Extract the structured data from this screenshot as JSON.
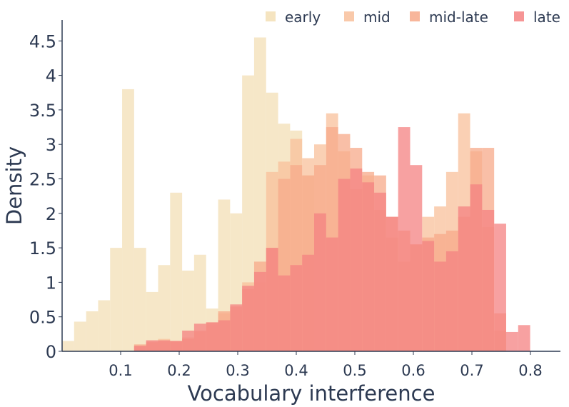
{
  "chart_data": {
    "type": "histogram",
    "title": "",
    "xlabel": "Vocabulary interference",
    "ylabel": "Density",
    "xlim": [
      0.0,
      0.84
    ],
    "ylim": [
      0,
      4.8
    ],
    "x_ticks": [
      0.1,
      0.2,
      0.3,
      0.4,
      0.5,
      0.6,
      0.7,
      0.8
    ],
    "x_tick_labels": [
      "0.1",
      "0.2",
      "0.3",
      "0.4",
      "0.5",
      "0.6",
      "0.7",
      "0.8"
    ],
    "y_ticks": [
      0,
      0.5,
      1,
      1.5,
      2,
      2.5,
      3,
      3.5,
      4,
      4.5
    ],
    "y_tick_labels": [
      "0",
      "0.5",
      "1",
      "1.5",
      "2",
      "2.5",
      "3",
      "3.5",
      "4",
      "4.5"
    ],
    "bin_width": 0.0205,
    "grid": false,
    "legend_position": "top",
    "series": [
      {
        "name": "early",
        "color": "#f3dfb5",
        "bin_starts": [
          0.0,
          0.0205,
          0.041,
          0.0615,
          0.082,
          0.1025,
          0.123,
          0.1435,
          0.164,
          0.1845,
          0.205,
          0.2255,
          0.246,
          0.2665,
          0.287,
          0.3075,
          0.328,
          0.3485,
          0.369,
          0.3895,
          0.41
        ],
        "values": [
          0.15,
          0.43,
          0.58,
          0.74,
          1.5,
          3.8,
          1.5,
          0.86,
          1.25,
          2.3,
          1.17,
          1.4,
          0.62,
          2.2,
          2.0,
          4.0,
          4.55,
          3.75,
          3.3,
          3.2,
          2.55
        ]
      },
      {
        "name": "mid",
        "color": "#f8c09b",
        "bin_starts": [
          0.123,
          0.1435,
          0.164,
          0.1845,
          0.205,
          0.2255,
          0.246,
          0.2665,
          0.287,
          0.3075,
          0.328,
          0.3485,
          0.369,
          0.3895,
          0.41,
          0.4305,
          0.451,
          0.4715,
          0.492,
          0.5125,
          0.533,
          0.5535,
          0.574,
          0.5945,
          0.615,
          0.6355,
          0.656,
          0.6765,
          0.697,
          0.7175,
          0.738
        ],
        "values": [
          0.08,
          0.12,
          0.18,
          0.15,
          0.2,
          0.28,
          0.38,
          0.55,
          0.6,
          1.0,
          1.0,
          2.6,
          2.75,
          3.08,
          2.8,
          3.0,
          3.45,
          2.9,
          2.35,
          2.55,
          2.05,
          1.65,
          1.3,
          1.55,
          1.95,
          2.1,
          2.6,
          3.45,
          2.9,
          1.8,
          0.3
        ]
      },
      {
        "name": "mid-late",
        "color": "#f7a98a",
        "bin_starts": [
          0.123,
          0.1435,
          0.164,
          0.1845,
          0.205,
          0.2255,
          0.246,
          0.2665,
          0.287,
          0.3075,
          0.328,
          0.3485,
          0.369,
          0.3895,
          0.41,
          0.4305,
          0.451,
          0.4715,
          0.492,
          0.5125,
          0.533,
          0.5535,
          0.574,
          0.5945,
          0.615,
          0.6355,
          0.656,
          0.6765,
          0.697,
          0.7175,
          0.738
        ],
        "values": [
          0.1,
          0.14,
          0.15,
          0.15,
          0.18,
          0.3,
          0.42,
          0.58,
          0.65,
          0.9,
          1.3,
          1.5,
          2.5,
          2.7,
          2.55,
          2.7,
          3.25,
          3.15,
          2.95,
          2.6,
          2.55,
          1.95,
          1.75,
          1.55,
          1.65,
          1.7,
          1.75,
          1.95,
          2.95,
          2.95,
          0.55
        ]
      },
      {
        "name": "late",
        "color": "#f48282",
        "bin_starts": [
          0.123,
          0.1435,
          0.164,
          0.1845,
          0.205,
          0.2255,
          0.246,
          0.2665,
          0.287,
          0.3075,
          0.328,
          0.3485,
          0.369,
          0.3895,
          0.41,
          0.4305,
          0.451,
          0.4715,
          0.492,
          0.5125,
          0.533,
          0.5535,
          0.574,
          0.5945,
          0.615,
          0.6355,
          0.656,
          0.6765,
          0.697,
          0.7175,
          0.738,
          0.7585,
          0.779
        ],
        "values": [
          0.08,
          0.16,
          0.16,
          0.15,
          0.3,
          0.4,
          0.42,
          0.45,
          0.68,
          0.95,
          1.15,
          1.5,
          1.1,
          1.25,
          1.4,
          2.0,
          1.65,
          2.5,
          2.65,
          2.45,
          2.3,
          1.95,
          3.25,
          2.7,
          1.6,
          1.3,
          1.45,
          2.1,
          2.42,
          2.05,
          1.85,
          0.28,
          0.38
        ]
      }
    ]
  }
}
